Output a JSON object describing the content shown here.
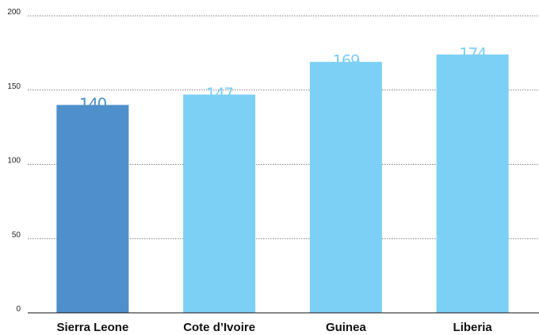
{
  "chart_data": {
    "type": "bar",
    "categories": [
      "Sierra Leone",
      "Cote d’Ivoire",
      "Guinea",
      "Liberia"
    ],
    "values": [
      140,
      147,
      169,
      174
    ],
    "colors": [
      "#4f8fcc",
      "#7dd0f5",
      "#7dd0f5",
      "#7dd0f5"
    ],
    "ylim": [
      0,
      200
    ],
    "yticks": [
      0,
      50,
      100,
      150,
      200
    ],
    "grid": true
  }
}
